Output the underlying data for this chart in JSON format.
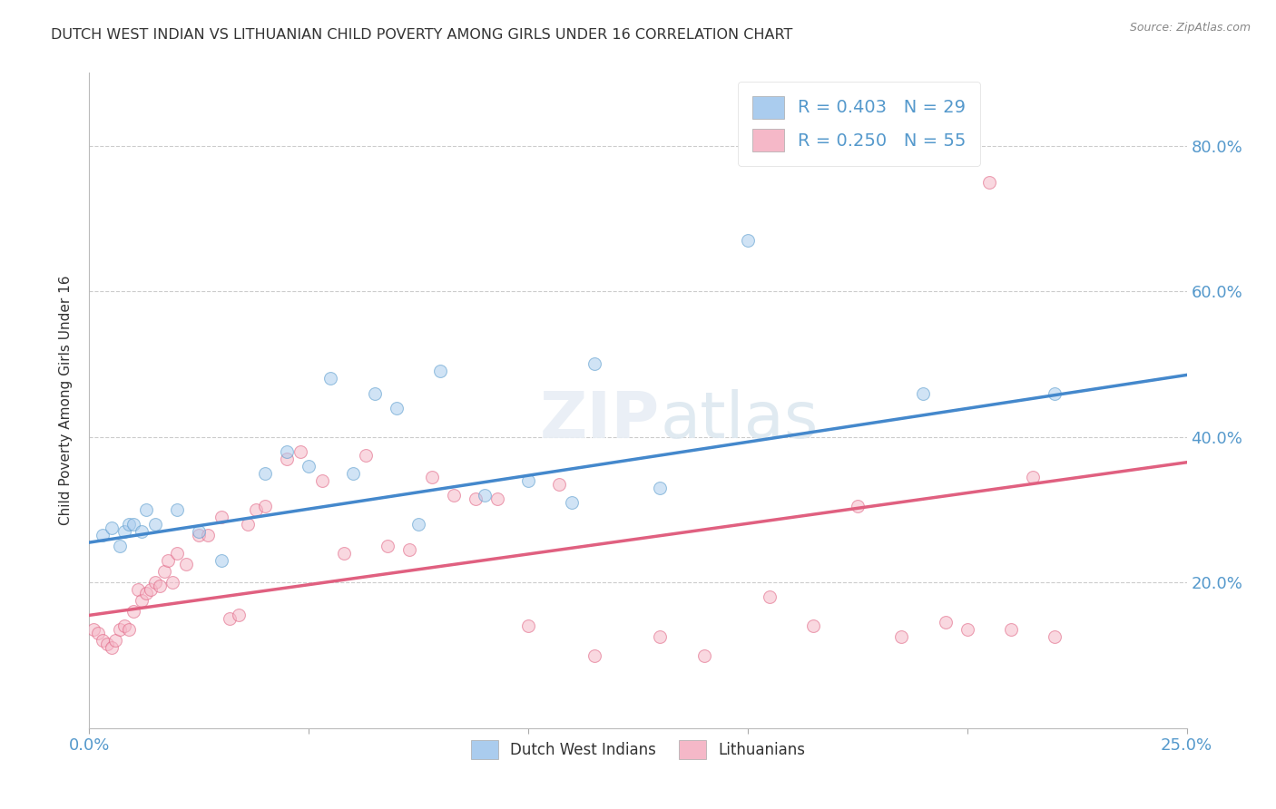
{
  "title": "DUTCH WEST INDIAN VS LITHUANIAN CHILD POVERTY AMONG GIRLS UNDER 16 CORRELATION CHART",
  "source": "Source: ZipAtlas.com",
  "ylabel": "Child Poverty Among Girls Under 16",
  "xlim": [
    0.0,
    0.25
  ],
  "ylim": [
    0.0,
    0.9
  ],
  "blue_R": "R = 0.403",
  "blue_N": "N = 29",
  "pink_R": "R = 0.250",
  "pink_N": "N = 55",
  "blue_color": "#aaccee",
  "pink_color": "#f5b8c8",
  "blue_edge_color": "#5599cc",
  "pink_edge_color": "#e06080",
  "blue_line_color": "#4488cc",
  "pink_line_color": "#e06080",
  "background_color": "#ffffff",
  "grid_color": "#cccccc",
  "title_color": "#333333",
  "axis_label_color": "#5599cc",
  "legend_label_blue": "Dutch West Indians",
  "legend_label_pink": "Lithuanians",
  "blue_scatter_x": [
    0.003,
    0.005,
    0.007,
    0.008,
    0.009,
    0.01,
    0.012,
    0.013,
    0.015,
    0.02,
    0.025,
    0.03,
    0.04,
    0.045,
    0.05,
    0.055,
    0.06,
    0.065,
    0.07,
    0.075,
    0.08,
    0.09,
    0.1,
    0.11,
    0.115,
    0.13,
    0.15,
    0.19,
    0.22
  ],
  "blue_scatter_y": [
    0.265,
    0.275,
    0.25,
    0.27,
    0.28,
    0.28,
    0.27,
    0.3,
    0.28,
    0.3,
    0.27,
    0.23,
    0.35,
    0.38,
    0.36,
    0.48,
    0.35,
    0.46,
    0.44,
    0.28,
    0.49,
    0.32,
    0.34,
    0.31,
    0.5,
    0.33,
    0.67,
    0.46,
    0.46
  ],
  "pink_scatter_x": [
    0.001,
    0.002,
    0.003,
    0.004,
    0.005,
    0.006,
    0.007,
    0.008,
    0.009,
    0.01,
    0.011,
    0.012,
    0.013,
    0.014,
    0.015,
    0.016,
    0.017,
    0.018,
    0.019,
    0.02,
    0.022,
    0.025,
    0.027,
    0.03,
    0.032,
    0.034,
    0.036,
    0.038,
    0.04,
    0.045,
    0.048,
    0.053,
    0.058,
    0.063,
    0.068,
    0.073,
    0.078,
    0.083,
    0.088,
    0.093,
    0.1,
    0.107,
    0.115,
    0.13,
    0.14,
    0.155,
    0.165,
    0.175,
    0.185,
    0.195,
    0.2,
    0.205,
    0.21,
    0.215,
    0.22
  ],
  "pink_scatter_y": [
    0.135,
    0.13,
    0.12,
    0.115,
    0.11,
    0.12,
    0.135,
    0.14,
    0.135,
    0.16,
    0.19,
    0.175,
    0.185,
    0.19,
    0.2,
    0.195,
    0.215,
    0.23,
    0.2,
    0.24,
    0.225,
    0.265,
    0.265,
    0.29,
    0.15,
    0.155,
    0.28,
    0.3,
    0.305,
    0.37,
    0.38,
    0.34,
    0.24,
    0.375,
    0.25,
    0.245,
    0.345,
    0.32,
    0.315,
    0.315,
    0.14,
    0.335,
    0.1,
    0.125,
    0.1,
    0.18,
    0.14,
    0.305,
    0.125,
    0.145,
    0.135,
    0.75,
    0.135,
    0.345,
    0.125
  ],
  "blue_line_x": [
    0.0,
    0.25
  ],
  "blue_line_y": [
    0.255,
    0.485
  ],
  "pink_line_x": [
    0.0,
    0.25
  ],
  "pink_line_y": [
    0.155,
    0.365
  ],
  "marker_size": 100,
  "marker_alpha": 0.55,
  "marker_edge_width": 0.8,
  "ytick_vals": [
    0.2,
    0.4,
    0.6,
    0.8
  ],
  "ytick_labels": [
    "20.0%",
    "40.0%",
    "60.0%",
    "80.0%"
  ]
}
